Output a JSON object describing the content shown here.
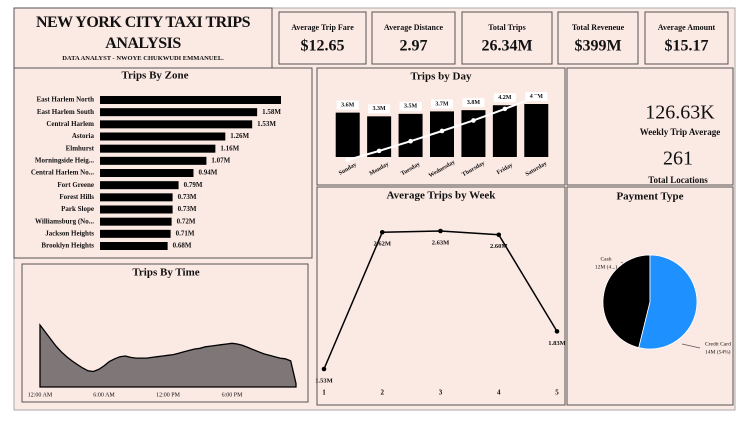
{
  "header": {
    "title": "NEW YORK CITY TAXI TRIPS ANALYSIS",
    "subtitle": "DATA ANALYST - NWOYE CHUKWUDI EMMANUEL."
  },
  "kpis": [
    {
      "label": "Average Trip Fare",
      "value": "$12.65"
    },
    {
      "label": "Average Distance",
      "value": "2.97"
    },
    {
      "label": "Total Trips",
      "value": "26.34M"
    },
    {
      "label": "Total Reveneue",
      "value": "$399M"
    },
    {
      "label": "Average Amount",
      "value": "$15.17"
    }
  ],
  "side_kpis": [
    {
      "value": "126.63K",
      "label": "Weekly Trip Average"
    },
    {
      "value": "261",
      "label": "Total Locations"
    }
  ],
  "chart_data": [
    {
      "type": "hbar",
      "title": "Trips By Zone",
      "color": "#000000",
      "categories": [
        "East Harlem North",
        "East Harlem South",
        "Central Harlem",
        "Astoria",
        "Elmhurst",
        "Morningside Heig...",
        "Central Harlem No...",
        "Fort Greene",
        "Forest Hills",
        "Park Slope",
        "Williamsburg (No...",
        "Jackson Heights",
        "Brooklyn Heights"
      ],
      "values": [
        1.82,
        1.58,
        1.53,
        1.26,
        1.16,
        1.07,
        0.94,
        0.79,
        0.73,
        0.73,
        0.72,
        0.71,
        0.68
      ],
      "value_labels": [
        null,
        "1.58M",
        "1.53M",
        "1.26M",
        "1.16M",
        "1.07M",
        "0.94M",
        "0.79M",
        "0.73M",
        "0.73M",
        "0.72M",
        "0.71M",
        "0.68M"
      ]
    },
    {
      "type": "bar",
      "title": "Trips by Day",
      "categories": [
        "Sunday",
        "Monday",
        "Tuesday",
        "Wednesday",
        "Thursday",
        "Friday",
        "Saturday"
      ],
      "series": [
        {
          "color": "#000000",
          "values": [
            3.6,
            3.3,
            3.5,
            3.7,
            3.8,
            4.2,
            4.3
          ],
          "value_labels": [
            "3.6M",
            "3.3M",
            "3.5M",
            "3.7M",
            "3.8M",
            "4.2M",
            "4.3M"
          ]
        },
        {
          "type": "line",
          "axis": "y2",
          "color": "#ffffff",
          "values": [
            3.6,
            6.9,
            10.4,
            14.1,
            17.9,
            22.1,
            26.4
          ]
        }
      ]
    },
    {
      "type": "area",
      "title": "Trips By Time",
      "color": "#7f7777",
      "x": [
        0,
        0.5,
        1,
        1.5,
        2,
        2.5,
        3,
        3.5,
        4,
        4.5,
        5,
        5.5,
        6,
        6.5,
        7,
        7.5,
        8,
        8.5,
        9,
        9.5,
        10,
        10.5,
        11,
        11.5,
        12,
        12.5,
        13,
        13.5,
        14,
        14.5,
        15,
        15.5,
        16,
        16.5,
        17,
        17.5,
        18,
        18.5,
        19,
        19.5,
        20,
        20.5,
        21,
        21.5,
        22,
        22.5,
        23,
        23.5,
        24
      ],
      "values": [
        88,
        78,
        68,
        58,
        50,
        43,
        37,
        32,
        27,
        23,
        22,
        25,
        30,
        36,
        40,
        43,
        44,
        42,
        41,
        41,
        41,
        42,
        43,
        44,
        45,
        46,
        48,
        50,
        52,
        54,
        55,
        57,
        58,
        59,
        60,
        61,
        62,
        61,
        59,
        56,
        53,
        50,
        47,
        45,
        43,
        41,
        40,
        37,
        5
      ],
      "xlim": [
        0,
        24
      ],
      "xticks": [
        {
          "value": 0,
          "label": "12:00 AM"
        },
        {
          "value": 6,
          "label": "6:00 AM"
        },
        {
          "value": 12,
          "label": "12:00 PM"
        },
        {
          "value": 18,
          "label": "6:00 PM"
        }
      ]
    },
    {
      "type": "line",
      "title": "Average Trips by Week",
      "color": "#000000",
      "x": [
        1,
        2,
        3,
        4,
        5
      ],
      "values": [
        1.53,
        2.62,
        2.63,
        2.6,
        1.83
      ],
      "value_labels": [
        "1.53M",
        "2.62M",
        "2.63M",
        "2.60M",
        "1.83M"
      ],
      "xlim": [
        1,
        5
      ],
      "xticks": [
        1,
        2,
        3,
        4,
        5
      ]
    },
    {
      "type": "pie",
      "title": "Payment Type",
      "categories": [
        "Cash",
        "Credit Card"
      ],
      "values": [
        12,
        14
      ],
      "value_labels": [
        "12M (4...)",
        "14M (54%)"
      ],
      "colors": [
        "#000000",
        "#1e90ff"
      ]
    }
  ]
}
